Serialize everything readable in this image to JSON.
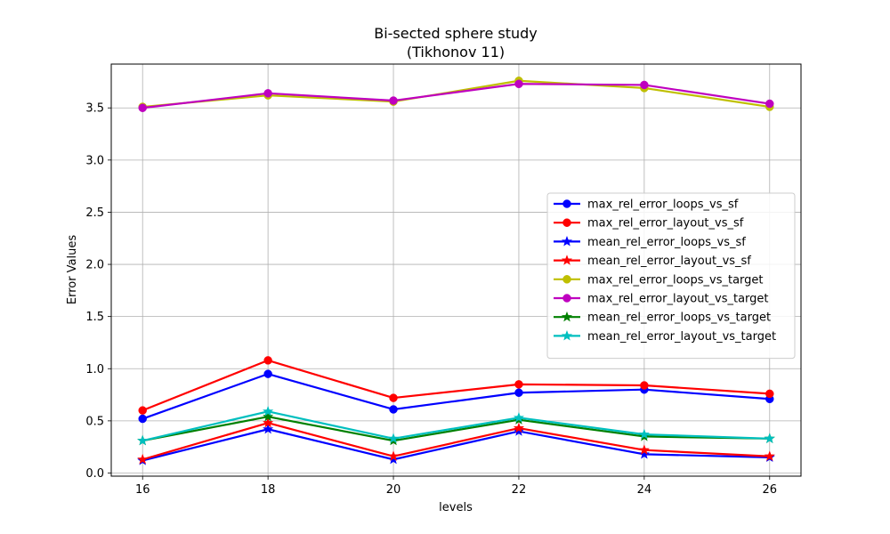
{
  "chart_data": {
    "type": "line",
    "title": "Bi-sected sphere study",
    "subtitle": "(Tikhonov 11)",
    "xlabel": "levels",
    "ylabel": "Error Values",
    "x": [
      16,
      18,
      20,
      22,
      24,
      26
    ],
    "xlim": [
      15.5,
      26.5
    ],
    "ylim": [
      -0.03,
      3.92
    ],
    "x_ticks": [
      16,
      18,
      20,
      22,
      24,
      26
    ],
    "x_tick_labels": [
      "16",
      "18",
      "20",
      "22",
      "24",
      "26"
    ],
    "y_ticks": [
      0.0,
      0.5,
      1.0,
      1.5,
      2.0,
      2.5,
      3.0,
      3.5
    ],
    "y_tick_labels": [
      "0.0",
      "0.5",
      "1.0",
      "1.5",
      "2.0",
      "2.5",
      "3.0",
      "3.5"
    ],
    "grid": true,
    "legend_position": "center-right",
    "series": [
      {
        "name": "max_rel_error_loops_vs_sf",
        "color": "#0000ff",
        "marker": "circle",
        "values": [
          0.52,
          0.95,
          0.61,
          0.77,
          0.8,
          0.71
        ]
      },
      {
        "name": "max_rel_error_layout_vs_sf",
        "color": "#ff0000",
        "marker": "circle",
        "values": [
          0.6,
          1.08,
          0.72,
          0.85,
          0.84,
          0.76
        ]
      },
      {
        "name": "mean_rel_error_loops_vs_sf",
        "color": "#0000ff",
        "marker": "star",
        "values": [
          0.12,
          0.42,
          0.13,
          0.4,
          0.18,
          0.15
        ]
      },
      {
        "name": "mean_rel_error_layout_vs_sf",
        "color": "#ff0000",
        "marker": "star",
        "values": [
          0.13,
          0.48,
          0.16,
          0.43,
          0.22,
          0.16
        ]
      },
      {
        "name": "max_rel_error_loops_vs_target",
        "color": "#bfbf00",
        "marker": "circle",
        "values": [
          3.51,
          3.62,
          3.56,
          3.76,
          3.69,
          3.51
        ]
      },
      {
        "name": "max_rel_error_layout_vs_target",
        "color": "#bf00bf",
        "marker": "circle",
        "values": [
          3.5,
          3.64,
          3.57,
          3.73,
          3.72,
          3.54
        ]
      },
      {
        "name": "mean_rel_error_loops_vs_target",
        "color": "#008000",
        "marker": "star",
        "values": [
          0.31,
          0.54,
          0.31,
          0.51,
          0.35,
          0.33
        ]
      },
      {
        "name": "mean_rel_error_layout_vs_target",
        "color": "#00bfbf",
        "marker": "star",
        "values": [
          0.31,
          0.59,
          0.33,
          0.53,
          0.37,
          0.33
        ]
      }
    ]
  }
}
